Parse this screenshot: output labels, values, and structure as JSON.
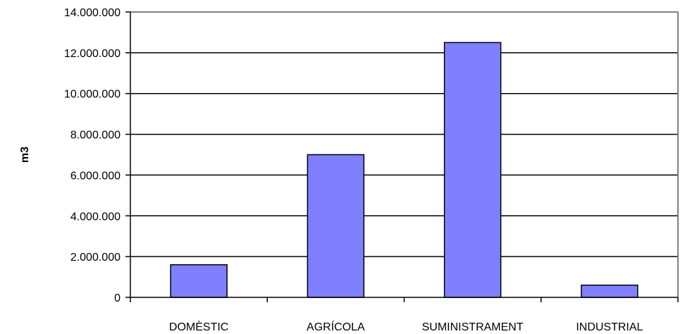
{
  "chart_data": {
    "type": "bar",
    "title": "",
    "xlabel": "",
    "ylabel": "m3",
    "categories": [
      "DOMÈSTIC",
      "AGRÍCOLA",
      "SUMINISTRAMENT",
      "INDUSTRIAL"
    ],
    "values": [
      1600000,
      7000000,
      12500000,
      600000
    ],
    "ylim": [
      0,
      14000000
    ],
    "yticks": [
      0,
      2000000,
      4000000,
      6000000,
      8000000,
      10000000,
      12000000,
      14000000
    ],
    "ytick_labels": [
      "0",
      "2.000.000",
      "4.000.000",
      "6.000.000",
      "8.000.000",
      "10.000.000",
      "12.000.000",
      "14.000.000"
    ],
    "grid": true,
    "legend": "none",
    "colors": {
      "bar": "#8080ff",
      "bar_stroke": "#000000",
      "grid": "#000000",
      "frame": "#808080"
    }
  }
}
